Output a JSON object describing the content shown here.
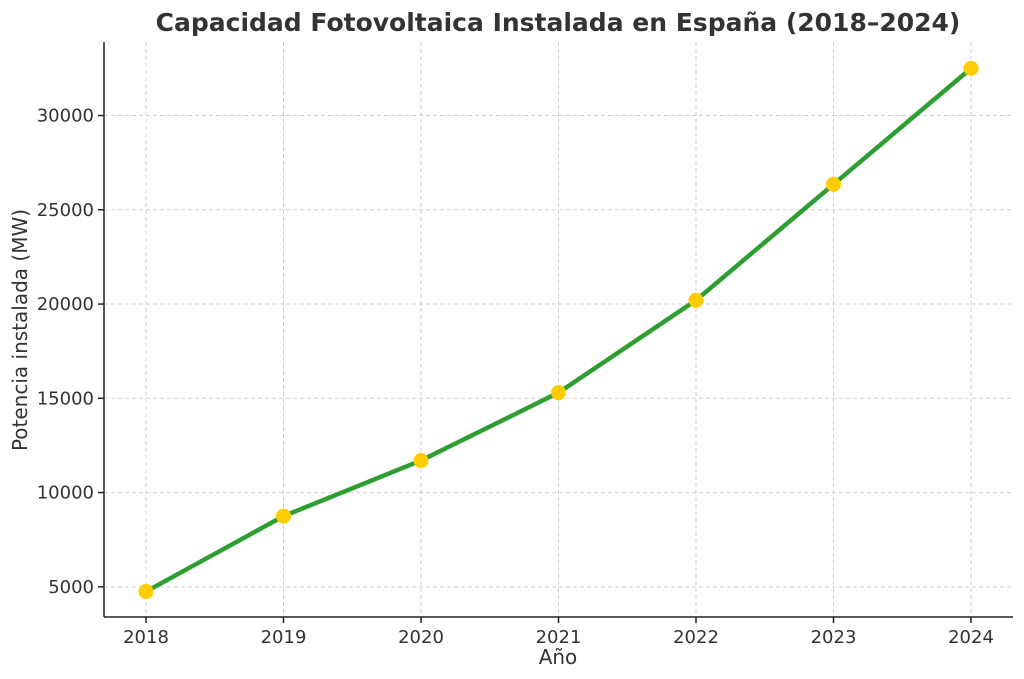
{
  "chart_data": {
    "type": "line",
    "title": "Capacidad Fotovoltaica Instalada en España (2018–2024)",
    "xlabel": "Año",
    "ylabel": "Potencia instalada (MW)",
    "categories": [
      "2018",
      "2019",
      "2020",
      "2021",
      "2022",
      "2023",
      "2024"
    ],
    "series": [
      {
        "name": "Potencia instalada (MW)",
        "values": [
          4750,
          8750,
          11700,
          15300,
          20200,
          26350,
          32500
        ]
      }
    ],
    "ylim": [
      3400,
      33900
    ],
    "yticks": [
      5000,
      10000,
      15000,
      20000,
      25000,
      30000
    ],
    "grid": true,
    "colors": {
      "line": "#2e9e32",
      "marker": "#ffcc00",
      "text": "#333333"
    }
  }
}
